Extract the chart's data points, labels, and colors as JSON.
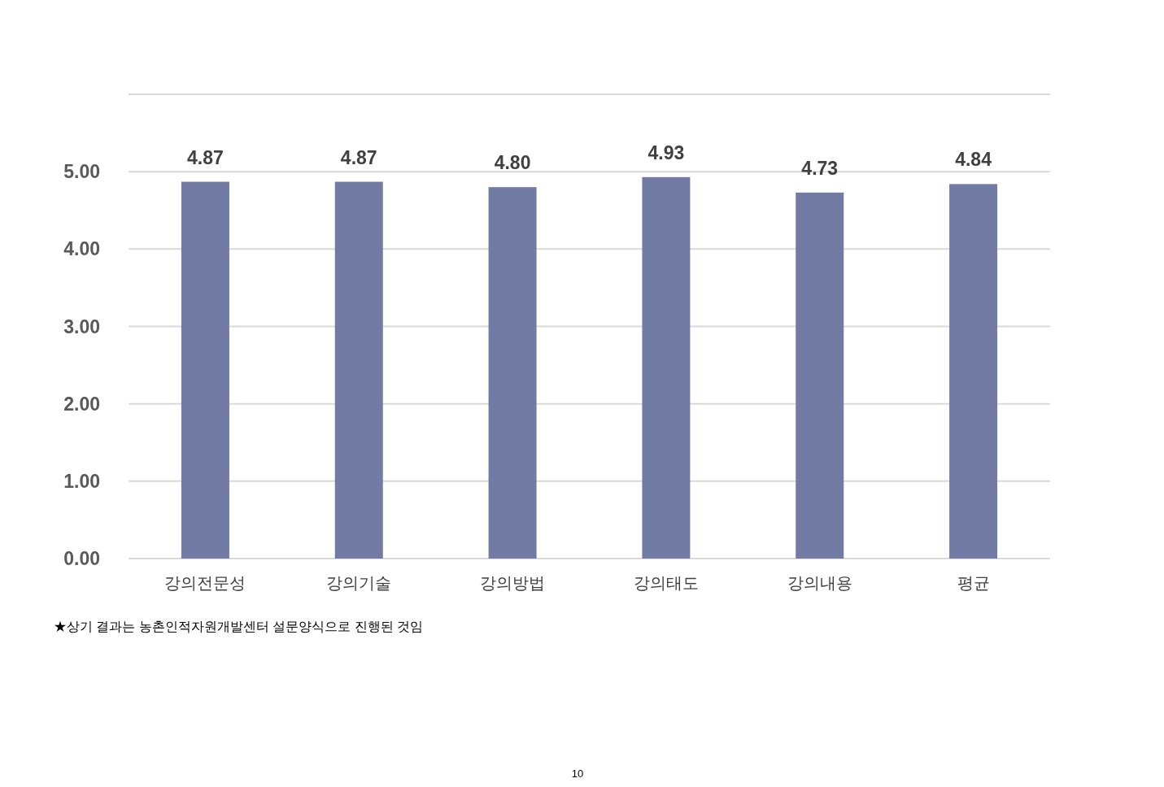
{
  "chart_data": {
    "type": "bar",
    "categories": [
      "강의전문성",
      "강의기술",
      "강의방법",
      "강의태도",
      "강의내용",
      "평균"
    ],
    "values": [
      4.87,
      4.87,
      4.8,
      4.93,
      4.73,
      4.84
    ],
    "color": "#717ba3",
    "value_labels": [
      "4.87",
      "4.87",
      "4.80",
      "4.93",
      "4.73",
      "4.84"
    ],
    "ylim": [
      0,
      6
    ],
    "yticks": [
      {
        "value": 0,
        "label": "0.00"
      },
      {
        "value": 1,
        "label": "1.00"
      },
      {
        "value": 2,
        "label": "2.00"
      },
      {
        "value": 3,
        "label": "3.00"
      },
      {
        "value": 4,
        "label": "4.00"
      },
      {
        "value": 5,
        "label": "5.00"
      },
      {
        "value": 6,
        "label": null
      }
    ],
    "grid": "y",
    "annotations": [
      "★상기 결과는 농촌인적자원개발센터 설문양식으로 진행된 것임",
      "10"
    ]
  }
}
